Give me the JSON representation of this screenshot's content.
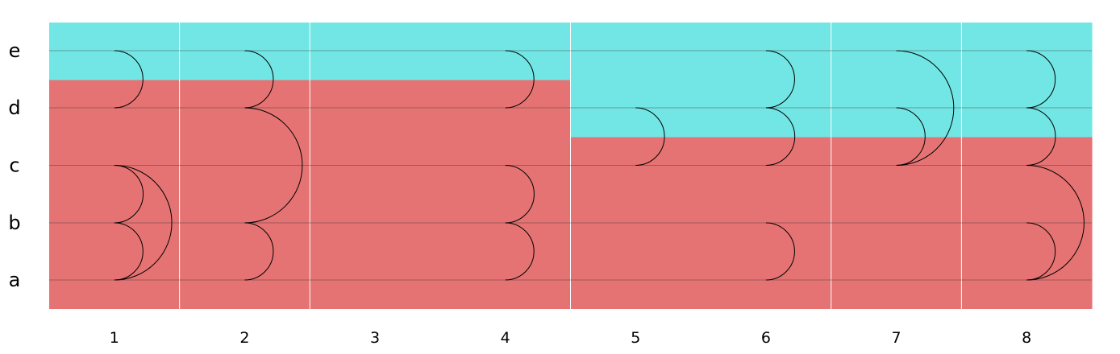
{
  "chart_data": {
    "type": "arc-diagram",
    "rows": [
      "a",
      "b",
      "c",
      "d",
      "e"
    ],
    "columns": [
      "1",
      "2",
      "3",
      "4",
      "5",
      "6",
      "7",
      "8"
    ],
    "colors": {
      "upper": "#72e6e4",
      "lower": "#e57373",
      "line": "#000000",
      "divider": "#ffffff"
    },
    "boundary": [
      {
        "column": "1",
        "lower_top": 3.5
      },
      {
        "column": "2",
        "lower_top": 3.5
      },
      {
        "column": "3",
        "lower_top": 3.5
      },
      {
        "column": "4",
        "lower_top": 3.5
      },
      {
        "column": "5",
        "lower_top": 2.5
      },
      {
        "column": "6",
        "lower_top": 2.5
      },
      {
        "column": "7",
        "lower_top": 2.5
      },
      {
        "column": "8",
        "lower_top": 2.5
      }
    ],
    "arcs": [
      {
        "column": "1",
        "from": "d",
        "to": "e"
      },
      {
        "column": "1",
        "from": "a",
        "to": "b"
      },
      {
        "column": "1",
        "from": "b",
        "to": "c"
      },
      {
        "column": "1",
        "from": "a",
        "to": "c"
      },
      {
        "column": "2",
        "from": "d",
        "to": "e"
      },
      {
        "column": "2",
        "from": "b",
        "to": "d"
      },
      {
        "column": "2",
        "from": "a",
        "to": "b"
      },
      {
        "column": "4",
        "from": "d",
        "to": "e"
      },
      {
        "column": "4",
        "from": "b",
        "to": "c"
      },
      {
        "column": "4",
        "from": "a",
        "to": "b"
      },
      {
        "column": "5",
        "from": "c",
        "to": "d"
      },
      {
        "column": "6",
        "from": "d",
        "to": "e"
      },
      {
        "column": "6",
        "from": "c",
        "to": "d"
      },
      {
        "column": "6",
        "from": "a",
        "to": "b"
      },
      {
        "column": "7",
        "from": "c",
        "to": "e"
      },
      {
        "column": "7",
        "from": "c",
        "to": "d"
      },
      {
        "column": "8",
        "from": "d",
        "to": "e"
      },
      {
        "column": "8",
        "from": "c",
        "to": "d"
      },
      {
        "column": "8",
        "from": "a",
        "to": "c"
      },
      {
        "column": "8",
        "from": "a",
        "to": "b"
      }
    ]
  }
}
